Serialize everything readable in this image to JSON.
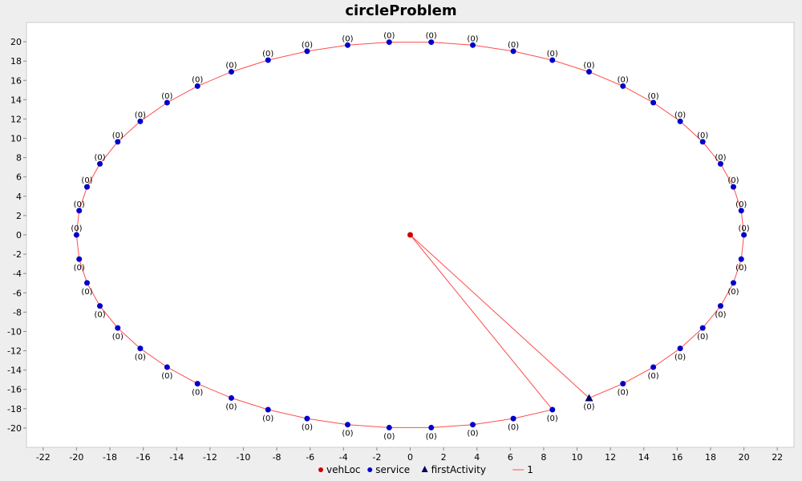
{
  "chart_data": {
    "type": "scatter",
    "title": "circleProblem",
    "xlabel": "",
    "ylabel": "",
    "xlim": [
      -23,
      23
    ],
    "ylim": [
      -22,
      22
    ],
    "x_ticks": [
      "-22",
      "-20",
      "-18",
      "-16",
      "-14",
      "-12",
      "-10",
      "-8",
      "-6",
      "-4",
      "-2",
      "0",
      "2",
      "4",
      "6",
      "8",
      "10",
      "12",
      "14",
      "16",
      "18",
      "20",
      "22"
    ],
    "y_ticks": [
      "-20",
      "-18",
      "-16",
      "-14",
      "-12",
      "-10",
      "-8",
      "-6",
      "-4",
      "-2",
      "0",
      "2",
      "4",
      "6",
      "8",
      "10",
      "12",
      "14",
      "16",
      "18",
      "20"
    ],
    "grid": false,
    "legend_position": "bottom",
    "colors": {
      "vehLoc": "#cc0000",
      "service": "#0000cc",
      "firstActivity": "#000066",
      "route": "#ff4d4d",
      "plot_background": "#ffffff"
    },
    "point_label": "(0)",
    "series": [
      {
        "name": "vehLoc",
        "points": [
          [
            0,
            0
          ]
        ]
      },
      {
        "name": "service",
        "points": [
          [
            20,
            0
          ],
          [
            19.84,
            2.51
          ],
          [
            19.37,
            4.97
          ],
          [
            18.6,
            7.36
          ],
          [
            17.53,
            9.64
          ],
          [
            16.18,
            11.76
          ],
          [
            14.57,
            13.7
          ],
          [
            12.75,
            15.41
          ],
          [
            10.72,
            16.89
          ],
          [
            8.52,
            18.1
          ],
          [
            6.18,
            19.02
          ],
          [
            3.75,
            19.65
          ],
          [
            1.26,
            19.96
          ],
          [
            -1.26,
            19.96
          ],
          [
            -3.75,
            19.65
          ],
          [
            -6.18,
            19.02
          ],
          [
            -8.52,
            18.1
          ],
          [
            -10.72,
            16.89
          ],
          [
            -12.75,
            15.41
          ],
          [
            -14.57,
            13.7
          ],
          [
            -16.18,
            11.76
          ],
          [
            -17.53,
            9.64
          ],
          [
            -18.6,
            7.36
          ],
          [
            -19.37,
            4.97
          ],
          [
            -19.84,
            2.51
          ],
          [
            -20,
            0
          ],
          [
            -19.84,
            -2.51
          ],
          [
            -19.37,
            -4.97
          ],
          [
            -18.6,
            -7.36
          ],
          [
            -17.53,
            -9.64
          ],
          [
            -16.18,
            -11.76
          ],
          [
            -14.57,
            -13.7
          ],
          [
            -12.75,
            -15.41
          ],
          [
            -10.72,
            -16.89
          ],
          [
            -8.52,
            -18.1
          ],
          [
            -6.18,
            -19.02
          ],
          [
            -3.75,
            -19.65
          ],
          [
            -1.26,
            -19.96
          ],
          [
            1.26,
            -19.96
          ],
          [
            3.75,
            -19.65
          ],
          [
            6.18,
            -19.02
          ],
          [
            8.52,
            -18.1
          ],
          [
            12.75,
            -15.41
          ],
          [
            14.57,
            -13.7
          ],
          [
            16.18,
            -11.76
          ],
          [
            17.53,
            -9.64
          ],
          [
            18.6,
            -7.36
          ],
          [
            19.37,
            -4.97
          ],
          [
            19.84,
            -2.51
          ]
        ]
      },
      {
        "name": "firstActivity",
        "points": [
          [
            10.72,
            -16.89
          ]
        ]
      },
      {
        "name": "1",
        "type": "line",
        "route": [
          [
            0,
            0
          ],
          [
            10.72,
            -16.89
          ],
          [
            12.75,
            -15.41
          ],
          [
            14.57,
            -13.7
          ],
          [
            16.18,
            -11.76
          ],
          [
            17.53,
            -9.64
          ],
          [
            18.6,
            -7.36
          ],
          [
            19.37,
            -4.97
          ],
          [
            19.84,
            -2.51
          ],
          [
            20,
            0
          ],
          [
            19.84,
            2.51
          ],
          [
            19.37,
            4.97
          ],
          [
            18.6,
            7.36
          ],
          [
            17.53,
            9.64
          ],
          [
            16.18,
            11.76
          ],
          [
            14.57,
            13.7
          ],
          [
            12.75,
            15.41
          ],
          [
            10.72,
            16.89
          ],
          [
            8.52,
            18.1
          ],
          [
            6.18,
            19.02
          ],
          [
            3.75,
            19.65
          ],
          [
            1.26,
            19.96
          ],
          [
            -1.26,
            19.96
          ],
          [
            -3.75,
            19.65
          ],
          [
            -6.18,
            19.02
          ],
          [
            -8.52,
            18.1
          ],
          [
            -10.72,
            16.89
          ],
          [
            -12.75,
            15.41
          ],
          [
            -14.57,
            13.7
          ],
          [
            -16.18,
            11.76
          ],
          [
            -17.53,
            9.64
          ],
          [
            -18.6,
            7.36
          ],
          [
            -19.37,
            4.97
          ],
          [
            -19.84,
            2.51
          ],
          [
            -20,
            0
          ],
          [
            -19.84,
            -2.51
          ],
          [
            -19.37,
            -4.97
          ],
          [
            -18.6,
            -7.36
          ],
          [
            -17.53,
            -9.64
          ],
          [
            -16.18,
            -11.76
          ],
          [
            -14.57,
            -13.7
          ],
          [
            -12.75,
            -15.41
          ],
          [
            -10.72,
            -16.89
          ],
          [
            -8.52,
            -18.1
          ],
          [
            -6.18,
            -19.02
          ],
          [
            -3.75,
            -19.65
          ],
          [
            -1.26,
            -19.96
          ],
          [
            1.26,
            -19.96
          ],
          [
            3.75,
            -19.65
          ],
          [
            6.18,
            -19.02
          ],
          [
            8.52,
            -18.1
          ],
          [
            0,
            0
          ]
        ]
      }
    ],
    "legend": [
      {
        "label": "vehLoc",
        "marker": "circle",
        "color": "#cc0000"
      },
      {
        "label": "service",
        "marker": "circle",
        "color": "#0000cc"
      },
      {
        "label": "firstActivity",
        "marker": "triangle",
        "color": "#000066"
      },
      {
        "label": "1",
        "marker": "line",
        "color": "#ff4d4d"
      }
    ]
  }
}
